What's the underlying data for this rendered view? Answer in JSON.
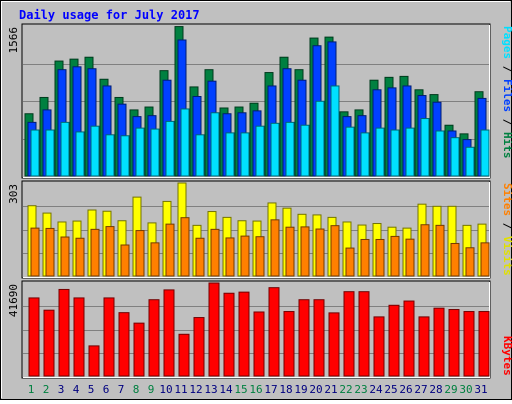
{
  "title": "Daily usage for July 2017",
  "colors": {
    "background": "#c0c0c0",
    "hits": "#008040",
    "files": "#0040ff",
    "pages": "#00e0ff",
    "visits": "#ffff00",
    "sites": "#ff8000",
    "kbytes": "#ff0000",
    "title": "#0000ff",
    "weekend_day": "#008040",
    "weekday": "#000080"
  },
  "chart_data": [
    {
      "type": "bar",
      "panel": "top",
      "max_label": "1566",
      "ylim": [
        0,
        1566
      ],
      "axis_label_parts": [
        "Pages",
        " / ",
        "Files",
        " / ",
        "Hits"
      ],
      "categories": [
        "1",
        "2",
        "3",
        "4",
        "5",
        "6",
        "7",
        "8",
        "9",
        "10",
        "11",
        "12",
        "13",
        "14",
        "15",
        "16",
        "17",
        "18",
        "19",
        "20",
        "21",
        "22",
        "23",
        "24",
        "25",
        "26",
        "27",
        "28",
        "29",
        "30",
        "31"
      ],
      "series": [
        {
          "name": "Hits",
          "values": [
            650,
            820,
            1200,
            1220,
            1240,
            1010,
            820,
            690,
            720,
            1100,
            1560,
            930,
            1110,
            710,
            720,
            760,
            1080,
            1240,
            1110,
            1440,
            1450,
            670,
            690,
            1000,
            1030,
            1040,
            900,
            850,
            530,
            440,
            880
          ]
        },
        {
          "name": "Files",
          "values": [
            560,
            690,
            1110,
            1140,
            1120,
            940,
            750,
            620,
            630,
            1000,
            1420,
            830,
            990,
            650,
            660,
            680,
            940,
            1120,
            1000,
            1360,
            1400,
            620,
            630,
            900,
            920,
            940,
            840,
            770,
            470,
            380,
            810
          ]
        },
        {
          "name": "Pages",
          "values": [
            480,
            480,
            560,
            460,
            520,
            430,
            420,
            500,
            490,
            570,
            700,
            430,
            660,
            450,
            450,
            520,
            550,
            560,
            530,
            780,
            940,
            510,
            450,
            500,
            480,
            500,
            600,
            470,
            400,
            300,
            480
          ]
        }
      ]
    },
    {
      "type": "bar",
      "panel": "middle",
      "max_label": "303",
      "ylim": [
        0,
        303
      ],
      "axis_label_parts": [
        "Sites",
        " / ",
        "Visits"
      ],
      "categories": [
        "1",
        "2",
        "3",
        "4",
        "5",
        "6",
        "7",
        "8",
        "9",
        "10",
        "11",
        "12",
        "13",
        "14",
        "15",
        "16",
        "17",
        "18",
        "19",
        "20",
        "21",
        "22",
        "23",
        "24",
        "25",
        "26",
        "27",
        "28",
        "29",
        "30",
        "31"
      ],
      "series": [
        {
          "name": "Visits",
          "values": [
            229,
            205,
            176,
            179,
            215,
            211,
            180,
            257,
            173,
            243,
            303,
            165,
            210,
            191,
            180,
            179,
            238,
            221,
            201,
            199,
            191,
            176,
            166,
            171,
            159,
            156,
            234,
            227,
            227,
            165,
            169
          ]
        },
        {
          "name": "Sites",
          "values": [
            156,
            155,
            127,
            123,
            152,
            161,
            101,
            148,
            108,
            169,
            190,
            123,
            152,
            124,
            130,
            128,
            183,
            159,
            160,
            153,
            164,
            91,
            119,
            119,
            129,
            120,
            167,
            165,
            106,
            92,
            108
          ]
        }
      ]
    },
    {
      "type": "bar",
      "panel": "bottom",
      "max_label": "41690",
      "ylim": [
        0,
        41690
      ],
      "axis_label_parts": [
        "KBytes"
      ],
      "categories": [
        "1",
        "2",
        "3",
        "4",
        "5",
        "6",
        "7",
        "8",
        "9",
        "10",
        "11",
        "12",
        "13",
        "14",
        "15",
        "16",
        "17",
        "18",
        "19",
        "20",
        "21",
        "22",
        "23",
        "24",
        "25",
        "26",
        "27",
        "28",
        "29",
        "30",
        "31"
      ],
      "series": [
        {
          "name": "KBytes",
          "values": [
            35000,
            29500,
            38800,
            35000,
            13500,
            35000,
            28400,
            23700,
            34200,
            38600,
            18700,
            26200,
            41690,
            37100,
            37600,
            28700,
            39600,
            28900,
            34200,
            34200,
            28300,
            37800,
            37800,
            26500,
            31700,
            33600,
            26500,
            30400,
            29800,
            28900,
            28900
          ]
        }
      ]
    }
  ],
  "day_labels": [
    "1",
    "2",
    "3",
    "4",
    "5",
    "6",
    "7",
    "8",
    "9",
    "10",
    "11",
    "12",
    "13",
    "14",
    "15",
    "16",
    "17",
    "18",
    "19",
    "20",
    "21",
    "22",
    "23",
    "24",
    "25",
    "26",
    "27",
    "28",
    "29",
    "30",
    "31"
  ],
  "weekend_days": [
    "1",
    "2",
    "8",
    "9",
    "15",
    "16",
    "22",
    "23",
    "29",
    "30"
  ]
}
